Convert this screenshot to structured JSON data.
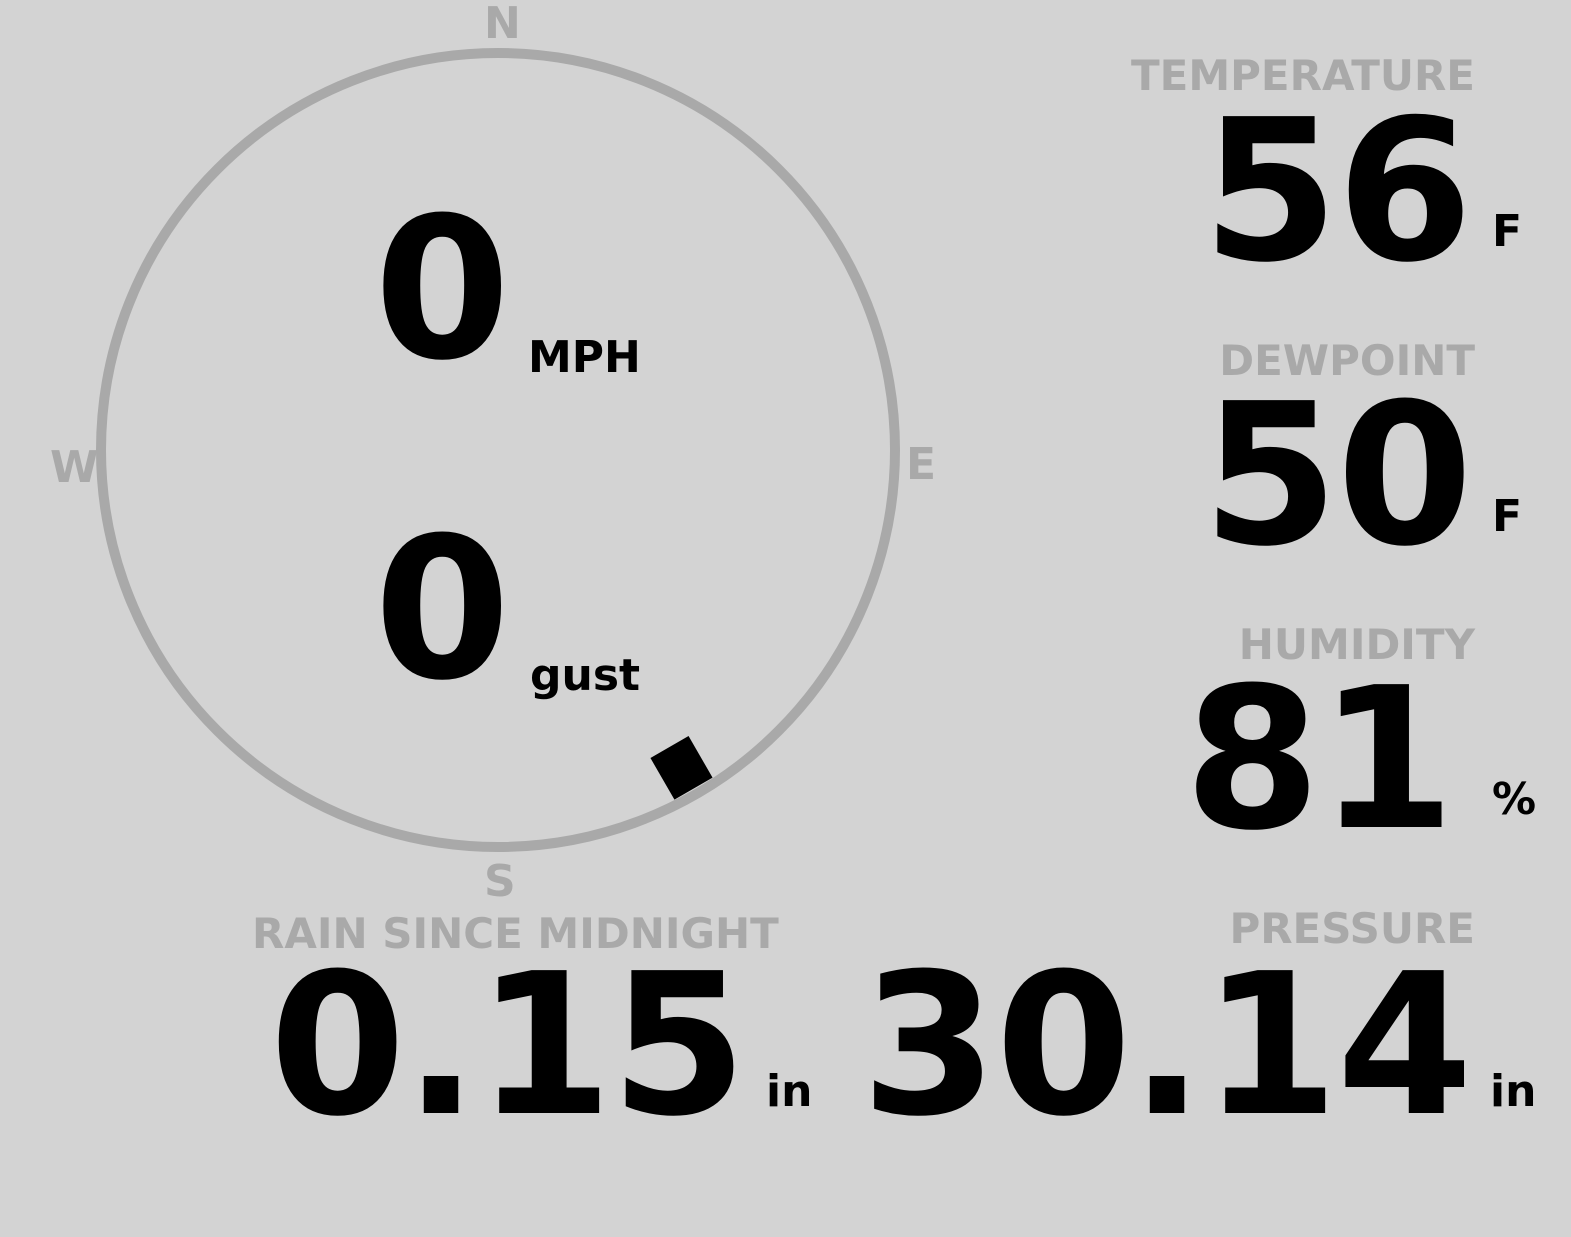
{
  "colors": {
    "background": "#d3d3d3",
    "label": "#a9a9a9",
    "value": "#000000",
    "ring": "#a9a9a9"
  },
  "wind": {
    "compass": {
      "n": "N",
      "e": "E",
      "s": "S",
      "w": "W"
    },
    "direction_deg": 150,
    "speed": "0",
    "speed_unit": "MPH",
    "gust": "0",
    "gust_unit": "gust"
  },
  "temperature": {
    "label": "TEMPERATURE",
    "value": "56",
    "unit": "F"
  },
  "dewpoint": {
    "label": "DEWPOINT",
    "value": "50",
    "unit": "F"
  },
  "humidity": {
    "label": "HUMIDITY",
    "value": "81",
    "unit": "%"
  },
  "rain": {
    "label": "RAIN SINCE MIDNIGHT",
    "value": "0.15",
    "unit": "in"
  },
  "pressure": {
    "label": "PRESSURE",
    "value": "30.14",
    "unit": "in"
  }
}
